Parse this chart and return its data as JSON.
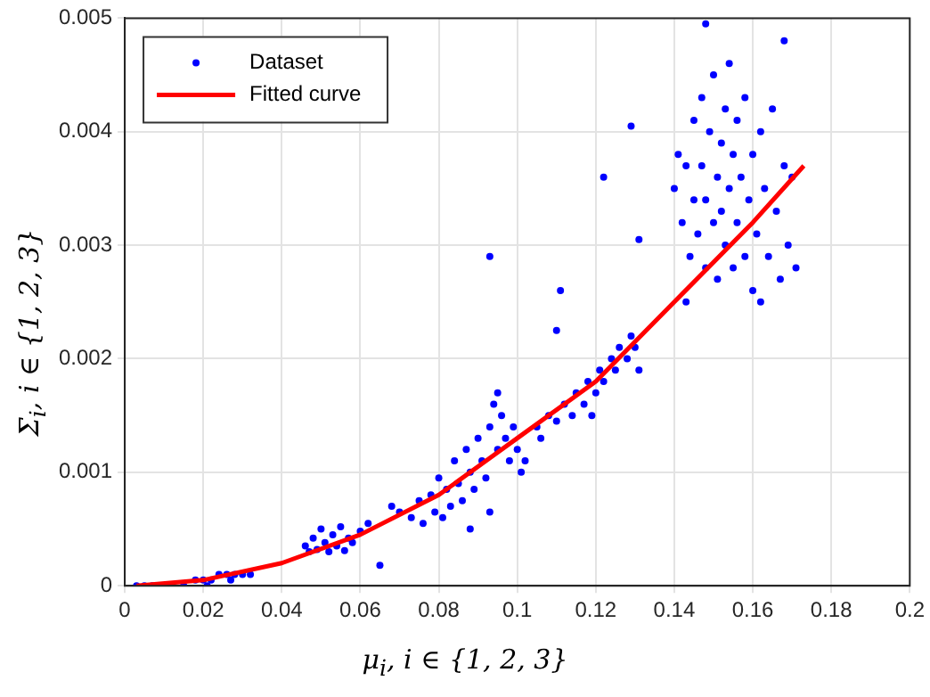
{
  "chart_data": {
    "type": "scatter",
    "xlabel": "μ$_{i}$, i ∈ {1, 2, 3}",
    "ylabel": "Σ$_{i}$, i ∈ {1, 2, 3}",
    "xlim": [
      0,
      0.2
    ],
    "xticks": [
      0,
      0.02,
      0.04,
      0.06,
      0.08,
      0.1,
      0.12,
      0.14,
      0.16,
      0.18,
      0.2
    ],
    "ylim": [
      0,
      0.005
    ],
    "yticks": [
      0,
      0.001,
      0.002,
      0.003,
      0.004,
      0.005
    ],
    "grid": true,
    "legend": "top left",
    "marker": "circle",
    "series": [
      {
        "name": "Dataset",
        "color": "#0000ff",
        "x": [
          0.003,
          0.005,
          0.007,
          0.015,
          0.018,
          0.02,
          0.022,
          0.024,
          0.026,
          0.028,
          0.03,
          0.032,
          0.021,
          0.027,
          0.046,
          0.047,
          0.048,
          0.049,
          0.05,
          0.051,
          0.052,
          0.053,
          0.054,
          0.055,
          0.056,
          0.057,
          0.058,
          0.06,
          0.065,
          0.062,
          0.07,
          0.068,
          0.073,
          0.075,
          0.076,
          0.078,
          0.079,
          0.08,
          0.081,
          0.082,
          0.083,
          0.084,
          0.085,
          0.086,
          0.087,
          0.088,
          0.089,
          0.09,
          0.091,
          0.092,
          0.093,
          0.094,
          0.095,
          0.095,
          0.096,
          0.097,
          0.098,
          0.099,
          0.1,
          0.101,
          0.102,
          0.088,
          0.093,
          0.093,
          0.105,
          0.106,
          0.108,
          0.11,
          0.112,
          0.114,
          0.115,
          0.117,
          0.118,
          0.12,
          0.121,
          0.122,
          0.124,
          0.125,
          0.126,
          0.128,
          0.129,
          0.13,
          0.131,
          0.111,
          0.11,
          0.119,
          0.14,
          0.141,
          0.142,
          0.143,
          0.144,
          0.145,
          0.145,
          0.146,
          0.147,
          0.147,
          0.148,
          0.148,
          0.149,
          0.15,
          0.15,
          0.151,
          0.151,
          0.152,
          0.152,
          0.153,
          0.153,
          0.154,
          0.154,
          0.155,
          0.155,
          0.156,
          0.156,
          0.157,
          0.158,
          0.158,
          0.159,
          0.16,
          0.16,
          0.161,
          0.162,
          0.163,
          0.164,
          0.165,
          0.166,
          0.167,
          0.168,
          0.169,
          0.17,
          0.171,
          0.143,
          0.162,
          0.148,
          0.168,
          0.122,
          0.129,
          0.131
        ],
        "values": [
          0,
          0,
          0,
          0,
          5e-05,
          5e-05,
          5e-05,
          0.0001,
          0.0001,
          0.0001,
          0.0001,
          0.0001,
          0,
          5e-05,
          0.00035,
          0.0003,
          0.00042,
          0.00032,
          0.0005,
          0.00038,
          0.0003,
          0.00045,
          0.00035,
          0.00052,
          0.00031,
          0.00042,
          0.00038,
          0.00048,
          0.00018,
          0.00055,
          0.00065,
          0.0007,
          0.0006,
          0.00075,
          0.00055,
          0.0008,
          0.00065,
          0.00095,
          0.0006,
          0.00085,
          0.0007,
          0.0011,
          0.0009,
          0.00075,
          0.0012,
          0.001,
          0.00085,
          0.0013,
          0.0011,
          0.00095,
          0.0014,
          0.0016,
          0.0017,
          0.0012,
          0.0015,
          0.0013,
          0.0011,
          0.0014,
          0.0012,
          0.001,
          0.0011,
          0.0005,
          0.00065,
          0.0029,
          0.0014,
          0.0013,
          0.0015,
          0.00145,
          0.0016,
          0.0015,
          0.0017,
          0.0016,
          0.0018,
          0.0017,
          0.0019,
          0.0018,
          0.002,
          0.0019,
          0.0021,
          0.002,
          0.0022,
          0.0021,
          0.0019,
          0.0026,
          0.00225,
          0.0015,
          0.0035,
          0.0038,
          0.0032,
          0.0037,
          0.0029,
          0.0041,
          0.0034,
          0.0031,
          0.0043,
          0.0037,
          0.0028,
          0.0034,
          0.004,
          0.0045,
          0.0032,
          0.0036,
          0.0027,
          0.0039,
          0.0033,
          0.0042,
          0.003,
          0.0046,
          0.0035,
          0.0038,
          0.0028,
          0.0041,
          0.0032,
          0.0036,
          0.0043,
          0.0029,
          0.0034,
          0.0038,
          0.0026,
          0.0031,
          0.004,
          0.0035,
          0.0029,
          0.0042,
          0.0033,
          0.0027,
          0.0037,
          0.003,
          0.0036,
          0.0028,
          0.0025,
          0.0025,
          0.00495,
          0.0048,
          0.0036,
          0.00405,
          0.00305
        ]
      },
      {
        "name": "Fitted curve",
        "type": "line",
        "color": "#ff0000",
        "marker": "none",
        "line_style": "solid",
        "x": [
          0.003,
          0.02,
          0.04,
          0.06,
          0.08,
          0.1,
          0.12,
          0.14,
          0.16,
          0.173
        ],
        "values": [
          0,
          5e-05,
          0.0002,
          0.00045,
          0.0008,
          0.0013,
          0.0018,
          0.0025,
          0.0032,
          0.0037
        ]
      }
    ]
  }
}
